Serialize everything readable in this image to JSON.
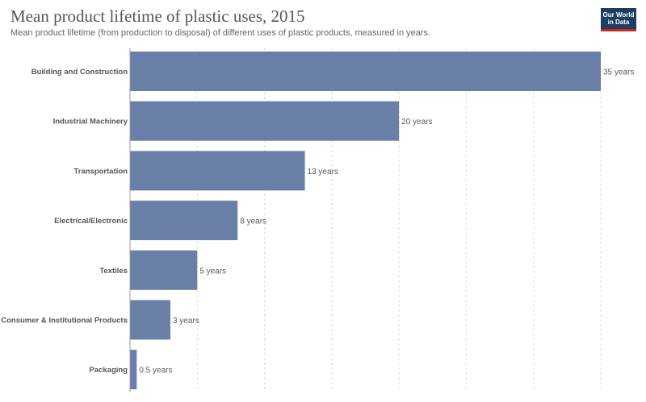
{
  "header": {
    "title": "Mean product lifetime of plastic uses, 2015",
    "subtitle": "Mean product lifetime (from production to disposal) of different uses of plastic products, measured in years.",
    "logo_line1": "Our World",
    "logo_line2": "in Data"
  },
  "chart_data": {
    "type": "bar",
    "orientation": "horizontal",
    "title": "Mean product lifetime of plastic uses, 2015",
    "subtitle": "Mean product lifetime (from production to disposal) of different uses of plastic products, measured in years.",
    "categories": [
      "Building and Construction",
      "Industrial Machinery",
      "Transportation",
      "Electrical/Electronic",
      "Textiles",
      "Consumer & Institutional Products",
      "Packaging"
    ],
    "values": [
      35,
      20,
      13,
      8,
      5,
      3,
      0.5
    ],
    "value_labels": [
      "35 years",
      "20 years",
      "13 years",
      "8 years",
      "5 years",
      "3 years",
      "0.5 years"
    ],
    "unit": "years",
    "xlim": [
      0,
      35
    ],
    "grid": true,
    "bar_color": "#6a7fa8",
    "grid_color": "#dddddd"
  }
}
